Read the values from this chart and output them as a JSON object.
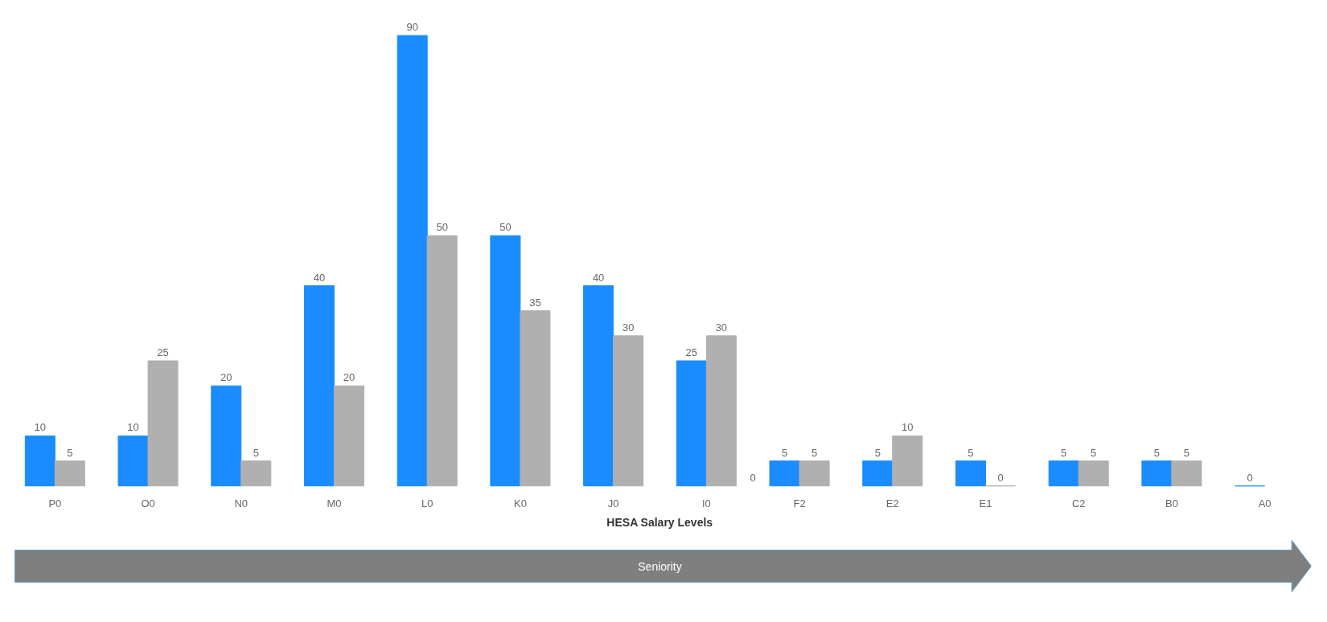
{
  "chart_data": {
    "type": "bar",
    "xlabel": "HESA Salary Levels",
    "categories": [
      "P0",
      "O0",
      "N0",
      "M0",
      "L0",
      "K0",
      "J0",
      "I0",
      "F2",
      "E2",
      "E1",
      "C2",
      "B0",
      "A0"
    ],
    "series": [
      {
        "color": "#1a8cff",
        "values": [
          10,
          10,
          20,
          40,
          90,
          50,
          40,
          25,
          5,
          5,
          5,
          5,
          5,
          0
        ]
      },
      {
        "color": "#b0b0b0",
        "values": [
          5,
          25,
          5,
          20,
          50,
          35,
          30,
          30,
          5,
          10,
          0,
          5,
          5,
          null
        ]
      }
    ],
    "data_labels": true,
    "grid": false,
    "annotations": [
      "0",
      "Seniority"
    ]
  }
}
